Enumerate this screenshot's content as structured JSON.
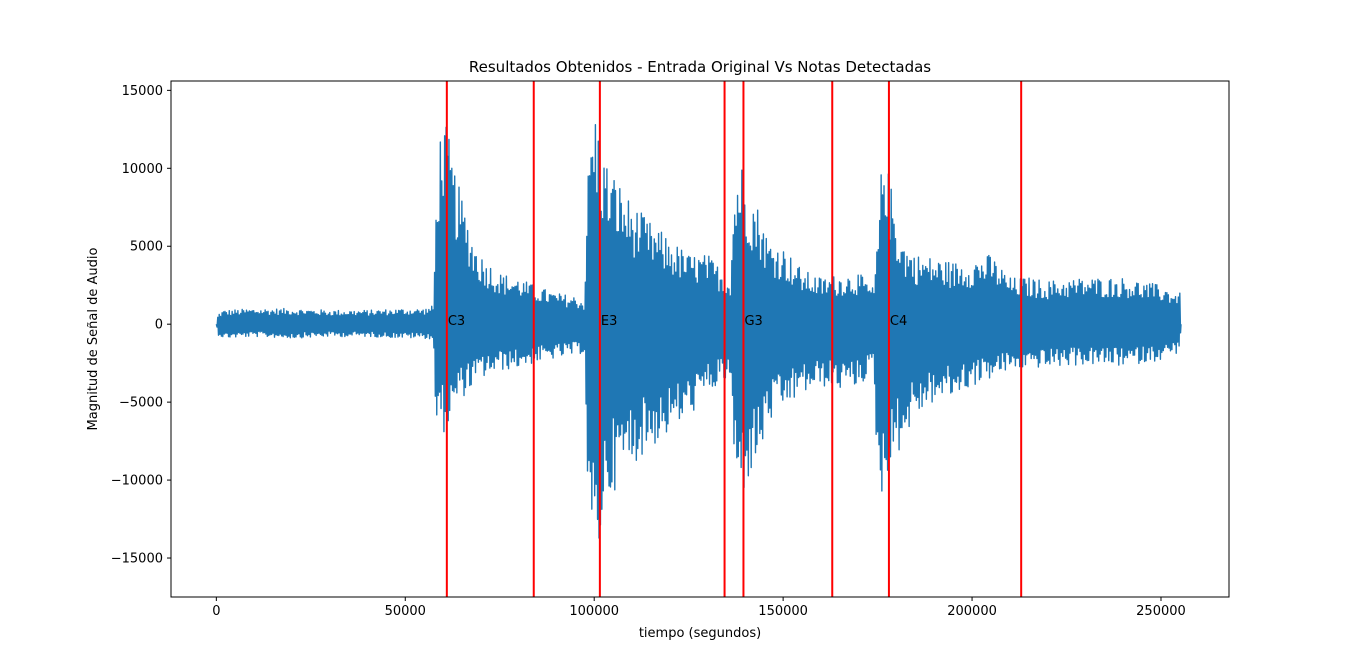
{
  "chart_data": {
    "type": "line",
    "title": "Resultados Obtenidos - Entrada Original Vs Notas Detectadas",
    "xlabel": "tiempo (segundos)",
    "ylabel": "Magnitud de Señal de Audio",
    "xlim": [
      -12000,
      268000
    ],
    "ylim": [
      -17500,
      15600
    ],
    "x_ticks": [
      0,
      50000,
      100000,
      150000,
      200000,
      250000
    ],
    "y_ticks": [
      -15000,
      -10000,
      -5000,
      0,
      5000,
      10000,
      15000
    ],
    "grid": false,
    "colors": {
      "signal": "#1f77b4",
      "onsets": "#ff0000"
    },
    "series": [
      {
        "envelope_x": [
          0,
          500,
          2000,
          10000,
          20000,
          30000,
          40000,
          50000,
          55000,
          57500,
          58000,
          59000,
          60000,
          61000,
          62000,
          63000,
          64000,
          66000,
          68000,
          70000,
          75000,
          80000,
          84000,
          90000,
          95000,
          97500,
          98000,
          99000,
          100000,
          101000,
          102000,
          104000,
          106000,
          108000,
          110000,
          115000,
          120000,
          125000,
          130000,
          134000,
          136000,
          137000,
          138000,
          139000,
          140000,
          142000,
          144000,
          146000,
          150000,
          155000,
          160000,
          165000,
          170000,
          174000,
          175000,
          176000,
          176500,
          177000,
          177500,
          178000,
          179000,
          180000,
          182000,
          185000,
          190000,
          195000,
          200000,
          205000,
          210000,
          215000,
          220000,
          230000,
          240000,
          250000,
          255000,
          255300
        ],
        "envelope_max": [
          0,
          700,
          900,
          1000,
          1000,
          900,
          900,
          1000,
          1000,
          1200,
          7000,
          12000,
          13800,
          12500,
          11500,
          10000,
          9000,
          7300,
          5500,
          4500,
          3300,
          3000,
          2500,
          2000,
          1800,
          1500,
          8000,
          12500,
          14100,
          13000,
          11500,
          10000,
          9500,
          8500,
          7800,
          6500,
          5500,
          4500,
          4500,
          3500,
          3000,
          8500,
          10200,
          10500,
          9500,
          8300,
          7300,
          5500,
          5000,
          3500,
          3000,
          3200,
          3300,
          2300,
          5500,
          10000,
          12000,
          12500,
          10500,
          9500,
          8500,
          6800,
          5300,
          4500,
          4300,
          4000,
          4200,
          4500,
          3000,
          3000,
          2800,
          3000,
          3000,
          2500,
          2000,
          0
        ],
        "envelope_min": [
          0,
          -700,
          -900,
          -800,
          -900,
          -800,
          -800,
          -900,
          -900,
          -1000,
          -6500,
          -7000,
          -7000,
          -6800,
          -6500,
          -5500,
          -5000,
          -4500,
          -4000,
          -3500,
          -3000,
          -2800,
          -2500,
          -2200,
          -2000,
          -1800,
          -9000,
          -15000,
          -16000,
          -15500,
          -13000,
          -11000,
          -10500,
          -9500,
          -9000,
          -8000,
          -7000,
          -6000,
          -4500,
          -3800,
          -3500,
          -9000,
          -11000,
          -11300,
          -10500,
          -9500,
          -8500,
          -6500,
          -5500,
          -4500,
          -4000,
          -4200,
          -4000,
          -3000,
          -10000,
          -12000,
          -11000,
          -10000,
          -9500,
          -9500,
          -9000,
          -8500,
          -7500,
          -6000,
          -5000,
          -4700,
          -4000,
          -3500,
          -3000,
          -2800,
          -2800,
          -2600,
          -2700,
          -2300,
          -1800,
          0
        ]
      }
    ],
    "onsets": [
      61000,
      84000,
      101500,
      134500,
      139500,
      163000,
      178000,
      213000
    ],
    "note_annotations": [
      {
        "x": 61000,
        "y": 0,
        "text": "C3"
      },
      {
        "x": 101500,
        "y": 0,
        "text": "E3"
      },
      {
        "x": 139500,
        "y": 0,
        "text": "G3"
      },
      {
        "x": 178000,
        "y": 0,
        "text": "C4"
      }
    ]
  }
}
